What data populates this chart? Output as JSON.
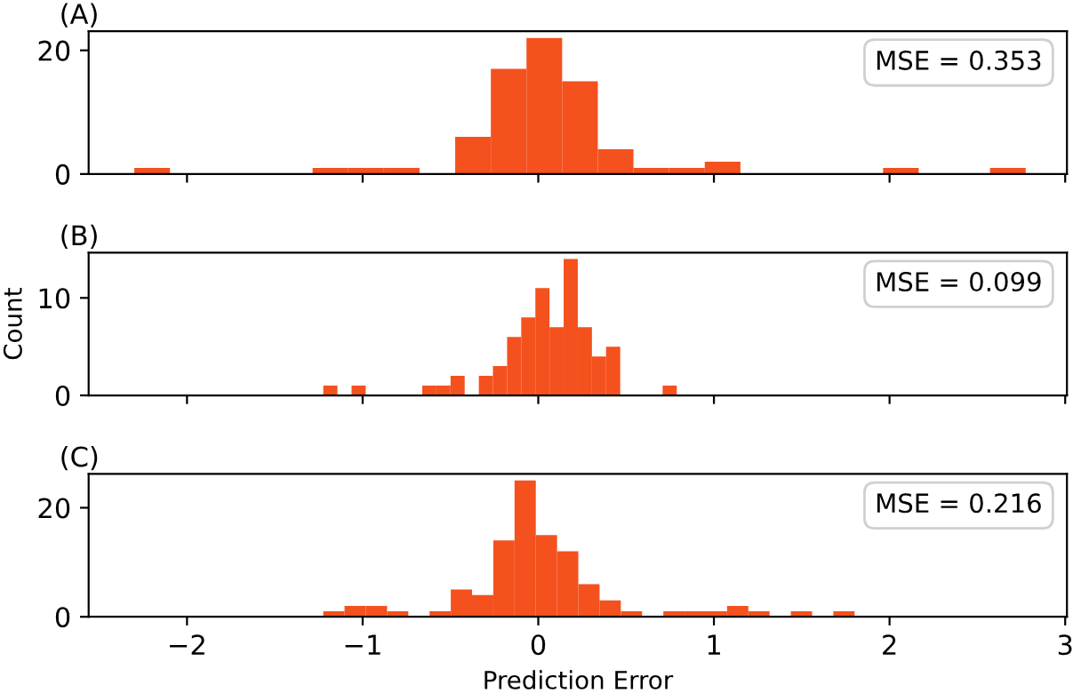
{
  "chart_data": [
    {
      "type": "histogram",
      "title": "(A)",
      "color": "#f4511e",
      "bins": [
        -2.3,
        -2.097,
        -1.894,
        -1.691,
        -1.488,
        -1.285,
        -1.082,
        -0.879,
        -0.676,
        -0.473,
        -0.27,
        -0.067,
        0.136,
        0.339,
        0.542,
        0.745,
        0.948,
        1.151,
        1.354,
        1.557,
        1.76,
        1.963,
        2.166,
        2.369,
        2.572,
        2.775
      ],
      "values": [
        1,
        0,
        0,
        0,
        0,
        1,
        1,
        1,
        0,
        6,
        17,
        22,
        15,
        4,
        1,
        1,
        2,
        0,
        0,
        0,
        0,
        1,
        0,
        0,
        1
      ],
      "xlim": [
        -2.56,
        3.01
      ],
      "xticks": [
        -2,
        -1,
        0,
        1,
        2,
        3
      ],
      "ylim": [
        0,
        23.1
      ],
      "yticks": [
        0,
        20
      ],
      "tick_labels": "y",
      "grid": false,
      "annotations": [
        "MSE = 0.353"
      ]
    },
    {
      "type": "histogram",
      "title": "(B)",
      "ylabel": "Count",
      "color": "#f4511e",
      "bins": [
        -1.224,
        -1.1435,
        -1.063,
        -0.9825,
        -0.902,
        -0.8215,
        -0.741,
        -0.6605,
        -0.58,
        -0.4995,
        -0.419,
        -0.3385,
        -0.258,
        -0.1775,
        -0.097,
        -0.0165,
        0.064,
        0.1445,
        0.225,
        0.3055,
        0.386,
        0.4665,
        0.547,
        0.6275,
        0.708,
        0.7885
      ],
      "values": [
        1,
        0,
        1,
        0,
        0,
        0,
        0,
        1,
        1,
        2,
        0,
        2,
        3,
        6,
        8,
        11,
        7,
        14,
        7,
        4,
        5,
        0,
        0,
        0,
        1
      ],
      "xlim": [
        -2.56,
        3.01
      ],
      "xticks": [
        -2,
        -1,
        0,
        1,
        2,
        3
      ],
      "ylim": [
        0,
        14.65
      ],
      "yticks": [
        0,
        10
      ],
      "tick_labels": "y",
      "grid": false,
      "annotations": [
        "MSE = 0.099"
      ]
    },
    {
      "type": "histogram",
      "title": "(C)",
      "xlabel": "Prediction Error",
      "color": "#f4511e",
      "bins": [
        -1.224,
        -1.103,
        -0.982,
        -0.861,
        -0.74,
        -0.619,
        -0.498,
        -0.377,
        -0.256,
        -0.135,
        -0.014,
        0.107,
        0.228,
        0.349,
        0.47,
        0.591,
        0.712,
        0.833,
        0.954,
        1.075,
        1.196,
        1.317,
        1.438,
        1.559,
        1.68,
        1.801
      ],
      "values": [
        1,
        2,
        2,
        1,
        0,
        1,
        5,
        4,
        14,
        25,
        15,
        12,
        6,
        3,
        1,
        0,
        1,
        1,
        1,
        2,
        1,
        0,
        1,
        0,
        1
      ],
      "xlim": [
        -2.56,
        3.01
      ],
      "xticks": [
        -2,
        -1,
        0,
        1,
        2,
        3
      ],
      "ylim": [
        0,
        26.2
      ],
      "yticks": [
        0,
        20
      ],
      "grid": false,
      "annotations": [
        "MSE = 0.216"
      ]
    }
  ]
}
